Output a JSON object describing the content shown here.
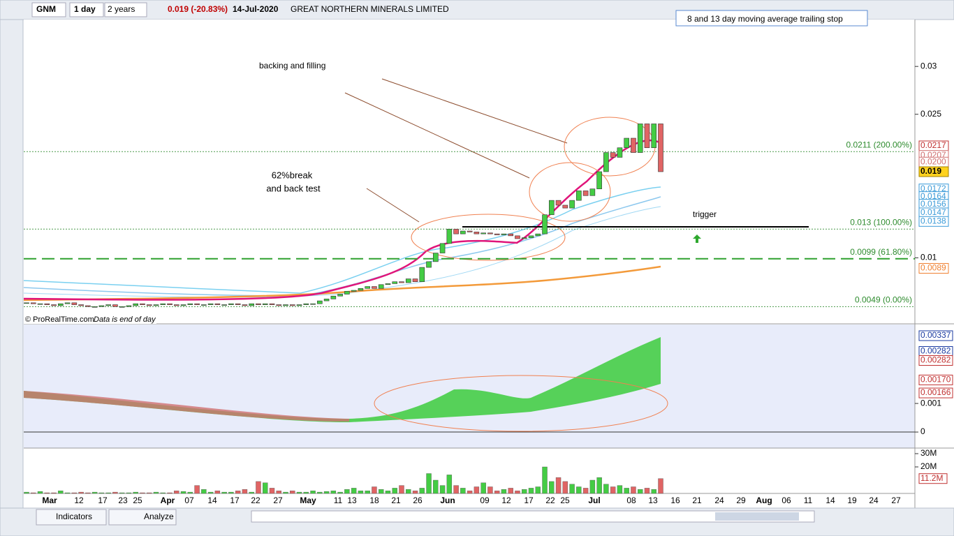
{
  "toolbar": {
    "symbol": "GNM",
    "interval": "1 day",
    "period": "2 years",
    "price_change": "0.019 (-20.83%)",
    "date": "14-Jul-2020",
    "name": "GREAT NORTHERN MINERALS LIMITED"
  },
  "annotations": {
    "top_box": "8 and 13 day moving average trailing stop",
    "backing": "backing and filling",
    "break1": "62%break",
    "break2": "and back test",
    "trigger": "trigger"
  },
  "footer": {
    "copyright": "© ProRealTime.com",
    "note": "Data is end of day"
  },
  "price_panel": {
    "ylim": [
      0.0031,
      0.0349
    ],
    "yticks": [
      0.03,
      0.025,
      {
        "value": 0.01,
        "label": "0.01"
      }
    ],
    "fib_levels": [
      {
        "value": 0.0211,
        "label": "0.0211 (200.00%)"
      },
      {
        "value": 0.013,
        "label": "0.013 (100.00%)"
      },
      {
        "value": 0.0099,
        "label": "0.0099 (61.80%)"
      },
      {
        "value": 0.0049,
        "label": "0.0049 (0.00%)"
      }
    ],
    "price_tags": [
      {
        "value": 0.0217,
        "label": "0.0217"
      },
      {
        "value": 0.0207,
        "label": "0.0207"
      },
      {
        "value": 0.02,
        "label": "0.0200"
      },
      {
        "value": 0.019,
        "label": "0.019"
      },
      {
        "value": 0.0172,
        "label": "0.0172"
      },
      {
        "value": 0.0164,
        "label": "0.0164"
      },
      {
        "value": 0.0156,
        "label": "0.0156"
      },
      {
        "value": 0.0147,
        "label": "0.0147"
      },
      {
        "value": 0.0138,
        "label": "0.0138"
      },
      {
        "value": 0.0089,
        "label": "0.0089"
      }
    ],
    "closes": [
      0.0053,
      0.0052,
      0.0052,
      0.0051,
      0.005,
      0.0052,
      0.0053,
      0.0051,
      0.005,
      0.0049,
      0.0049,
      0.005,
      0.0051,
      0.0049,
      0.0049,
      0.005,
      0.0052,
      0.0051,
      0.005,
      0.0051,
      0.0052,
      0.0051,
      0.005,
      0.0051,
      0.0052,
      0.0051,
      0.0051,
      0.0052,
      0.0051,
      0.0051,
      0.0052,
      0.0051,
      0.005,
      0.0052,
      0.0051,
      0.0052,
      0.0051,
      0.005,
      0.0051,
      0.005,
      0.0051,
      0.0052,
      0.0052,
      0.0055,
      0.0057,
      0.006,
      0.0062,
      0.0065,
      0.0066,
      0.0068,
      0.007,
      0.0068,
      0.0072,
      0.0073,
      0.0075,
      0.0074,
      0.0078,
      0.0075,
      0.009,
      0.0096,
      0.0105,
      0.0115,
      0.013,
      0.0125,
      0.0128,
      0.0127,
      0.0125,
      0.0126,
      0.0125,
      0.0124,
      0.0125,
      0.0123,
      0.012,
      0.0121,
      0.0123,
      0.0125,
      0.0145,
      0.016,
      0.0155,
      0.0152,
      0.016,
      0.017,
      0.0165,
      0.0172,
      0.019,
      0.021,
      0.0205,
      0.0215,
      0.0225,
      0.021,
      0.024,
      0.0215,
      0.024,
      0.019
    ]
  },
  "indicator_panel": {
    "ylim": [
      -0.00056,
      0.00376
    ],
    "labels": [
      {
        "value": 0.00337,
        "label": "0.00337"
      },
      {
        "value": 0.00282,
        "label": "0.00282"
      },
      {
        "value": 0.00282,
        "label": "0.00282"
      },
      {
        "value": 0.0017,
        "label": "0.00170"
      },
      {
        "value": 0.00166,
        "label": "0.00166"
      },
      {
        "value": 0.001,
        "label": "0.001"
      },
      {
        "value": 0,
        "label": "0"
      }
    ]
  },
  "volume_panel": {
    "ylim": [
      0,
      30000000
    ],
    "yticks": [
      {
        "value": 30000000,
        "label": "30M"
      },
      {
        "value": 20000000,
        "label": "20M"
      }
    ],
    "last_tag": {
      "value": 11200000,
      "label": "11.2M"
    },
    "volumes": [
      1000000.0,
      500000.0,
      1500000.0,
      500000.0,
      500000.0,
      2000000.0,
      500000.0,
      500000.0,
      1000000.0,
      500000.0,
      1000000.0,
      500000.0,
      500000.0,
      1000000.0,
      500000.0,
      500000.0,
      1000000.0,
      500000.0,
      500000.0,
      1000000.0,
      500000.0,
      500000.0,
      2000000.0,
      1500000.0,
      1000000.0,
      6000000.0,
      3000000.0,
      1000000.0,
      2000000.0,
      1000000.0,
      1000000.0,
      2000000.0,
      3000000.0,
      1000000.0,
      9000000.0,
      8000000.0,
      4000000.0,
      2000000.0,
      1000000.0,
      2000000.0,
      1000000.0,
      1000000.0,
      2000000.0,
      1000000.0,
      1500000.0,
      2000000.0,
      1000000.0,
      3000000.0,
      4000000.0,
      2000000.0,
      2000000.0,
      5000000.0,
      3000000.0,
      2000000.0,
      4000000.0,
      6000000.0,
      3000000.0,
      2000000.0,
      4000000.0,
      15000000.0,
      10000000.0,
      6000000.0,
      14000000.0,
      6000000.0,
      4000000.0,
      2000000.0,
      5000000.0,
      8000000.0,
      5000000.0,
      2000000.0,
      3000000.0,
      4000000.0,
      2000000.0,
      3000000.0,
      4000000.0,
      5000000.0,
      20000000.0,
      9000000.0,
      12000000.0,
      9000000.0,
      7000000.0,
      5000000.0,
      4000000.0,
      10000000.0,
      12000000.0,
      7000000.0,
      5000000.0,
      6000000.0,
      4000000.0,
      5000000.0,
      3000000.0,
      4000000.0,
      3000000.0,
      11200000
    ]
  },
  "x_labels": [
    "Mar",
    "12",
    "17",
    "23",
    "25",
    "Apr",
    "07",
    "14",
    "17",
    "22",
    "27",
    "May",
    "11",
    "13",
    "18",
    "21",
    "26",
    "Jun",
    "09",
    "12",
    "17",
    "22",
    "25",
    "Jul",
    "08",
    "13",
    "16",
    "21",
    "24",
    "29",
    "Aug",
    "06",
    "11",
    "14",
    "19",
    "24",
    "27"
  ],
  "bottom_toolbar": {
    "indicators": "Indicators",
    "analyze": "Analyze"
  }
}
